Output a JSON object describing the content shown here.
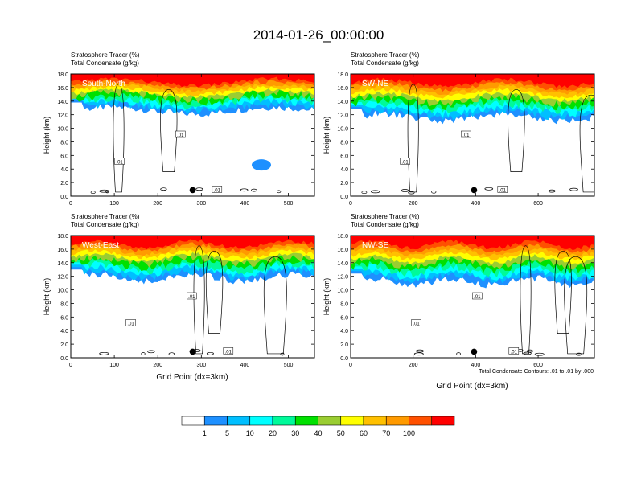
{
  "figure_title": "2014-01-26_00:00:00",
  "chart_data": {
    "type": "contour-panels",
    "title": "2014-01-26_00:00:00",
    "shared_labels": {
      "ylabel": "Height (km)",
      "xlabel": "Grid Point (dx=3km)"
    },
    "contour_note": "Total Condensate Contours: .01 to .01 by .000",
    "contour_label": ".01",
    "y_ticks": [
      "0.0",
      "2.0",
      "4.0",
      "6.0",
      "8.0",
      "10.0",
      "12.0",
      "14.0",
      "16.0",
      "18.0"
    ],
    "ylim": [
      0,
      18
    ],
    "panels": [
      {
        "label": "South-North",
        "line1_text": "Stratosphere Tracer   (%)",
        "line2_text": "Total Condensate   (g/kg)",
        "xlim": [
          0,
          560
        ],
        "x_ticks": [
          0,
          100,
          200,
          300,
          400,
          500
        ],
        "tracer_base_km": 12.6,
        "marker_x": 280
      },
      {
        "label": "SW-NE",
        "line1_text": "Stratosphere Tracer   (%)",
        "line2_text": "Total Condensate   (g/kg)",
        "xlim": [
          0,
          780
        ],
        "x_ticks": [
          0,
          200,
          400,
          600
        ],
        "tracer_base_km": 11.6,
        "marker_x": 395
      },
      {
        "label": "West-East",
        "line1_text": "Stratosphere Tracer   (%)",
        "line2_text": "Total Condensate   (g/kg)",
        "xlim": [
          0,
          560
        ],
        "x_ticks": [
          0,
          100,
          200,
          300,
          400,
          500
        ],
        "tracer_base_km": 11.8,
        "marker_x": 280
      },
      {
        "label": "NW-SE",
        "line1_text": "Stratosphere Tracer   (%)",
        "line2_text": "Total Condensate   (g/kg)",
        "xlim": [
          0,
          780
        ],
        "x_ticks": [
          0,
          200,
          400,
          600
        ],
        "tracer_base_km": 11.2,
        "marker_x": 395
      }
    ],
    "colorbar": {
      "labels": [
        "1",
        "5",
        "10",
        "20",
        "30",
        "40",
        "50",
        "60",
        "70",
        "100"
      ],
      "colors": [
        "#ffffff",
        "#1e90ff",
        "#00bfff",
        "#00ffff",
        "#00fa9a",
        "#00e000",
        "#9acd32",
        "#ffff00",
        "#ffc000",
        "#ff9a00",
        "#ff5000",
        "#ff0000"
      ]
    }
  }
}
